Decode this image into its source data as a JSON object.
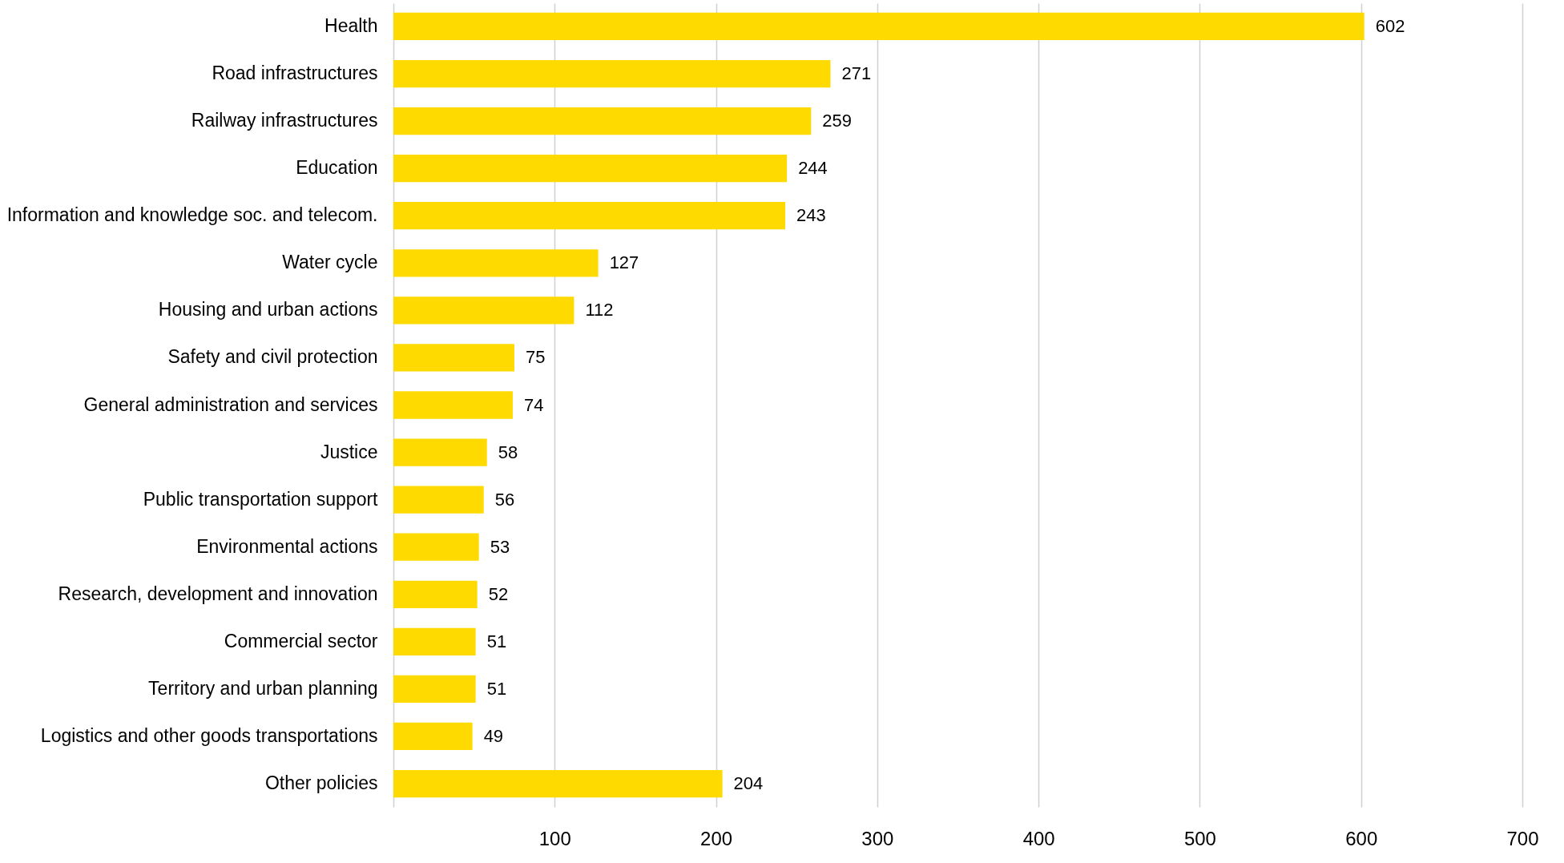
{
  "chart_data": {
    "type": "bar",
    "orientation": "horizontal",
    "categories": [
      "Health",
      "Road infrastructures",
      "Railway infrastructures",
      "Education",
      "Information and knowledge soc. and telecom.",
      "Water cycle",
      "Housing and urban actions",
      "Safety and civil protection",
      "General administration and services",
      "Justice",
      "Public transportation support",
      "Environmental actions",
      "Research, development and innovation",
      "Commercial sector",
      "Territory and urban planning",
      "Logistics and other goods transportations",
      "Other policies"
    ],
    "values": [
      602,
      271,
      259,
      244,
      243,
      127,
      112,
      75,
      74,
      58,
      56,
      53,
      52,
      51,
      51,
      49,
      204
    ],
    "color": "#ffda00",
    "xlim": [
      0,
      700
    ],
    "xticks": [
      {
        "value": 0,
        "label": null
      },
      100,
      200,
      300,
      400,
      500,
      600,
      700
    ],
    "grid": "x",
    "data_labels": true
  }
}
